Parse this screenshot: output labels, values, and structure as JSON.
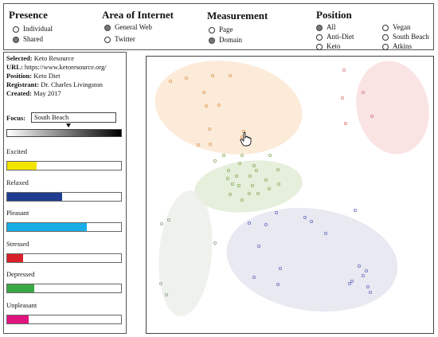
{
  "presence": {
    "title": "Presence",
    "options": [
      {
        "label": "Individual",
        "checked": false
      },
      {
        "label": "Shared",
        "checked": true
      }
    ]
  },
  "area": {
    "title": "Area of Internet",
    "options": [
      {
        "label": "General Web",
        "checked": true
      },
      {
        "label": "Twitter",
        "checked": false
      }
    ]
  },
  "measurement": {
    "title": "Measurement",
    "options": [
      {
        "label": "Page",
        "checked": false
      },
      {
        "label": "Domain",
        "checked": true
      }
    ]
  },
  "position": {
    "title": "Position",
    "options": [
      {
        "label": "All",
        "checked": true
      },
      {
        "label": "Anti-Diet",
        "checked": false
      },
      {
        "label": "Keto",
        "checked": false
      },
      {
        "label": "Vegan",
        "checked": false
      },
      {
        "label": "South Beach",
        "checked": false
      },
      {
        "label": "Atkins",
        "checked": false
      }
    ]
  },
  "info": {
    "selected_label": "Selected:",
    "selected_value": "Keto Resource",
    "url_label": "URL:",
    "url_value": "https://www.ketoresource.org/",
    "position_label": "Position:",
    "position_value": "Keto Diet",
    "registrant_label": "Registrant:",
    "registrant_value": "Dr. Charles Livingston",
    "created_label": "Created:",
    "created_value": "May 2017"
  },
  "focus": {
    "label": "Focus:",
    "value": "South Beach",
    "marker": 0.54
  },
  "emotions": [
    {
      "label": "Excited",
      "value": 0.26,
      "color": "#f2e600"
    },
    {
      "label": "Relaxed",
      "value": 0.48,
      "color": "#1f3c91"
    },
    {
      "label": "Pleasant",
      "value": 0.7,
      "color": "#1aaee6"
    },
    {
      "label": "Stressed",
      "value": 0.14,
      "color": "#d8202a"
    },
    {
      "label": "Depressed",
      "value": 0.24,
      "color": "#3aa845"
    },
    {
      "label": "Unpleasant",
      "value": 0.19,
      "color": "#e0157e"
    }
  ],
  "clusters": [
    {
      "name": "cluster-orange",
      "fill": "#fbe7d2",
      "stroke": "#e09a55",
      "points": 12
    },
    {
      "name": "cluster-pink",
      "fill": "#f9dede",
      "stroke": "#d97f7f",
      "points": 5
    },
    {
      "name": "cluster-green",
      "fill": "#e2ecd6",
      "stroke": "#8aad5e",
      "points": 22
    },
    {
      "name": "cluster-grey",
      "fill": "#eceeea",
      "stroke": "#8fa38f",
      "points": 5
    },
    {
      "name": "cluster-blue",
      "fill": "#e4e5ef",
      "stroke": "#6b72c2",
      "points": 18
    }
  ],
  "icons": {
    "cursor": "hand-pointer-icon",
    "radio": "radio-circle-icon"
  }
}
